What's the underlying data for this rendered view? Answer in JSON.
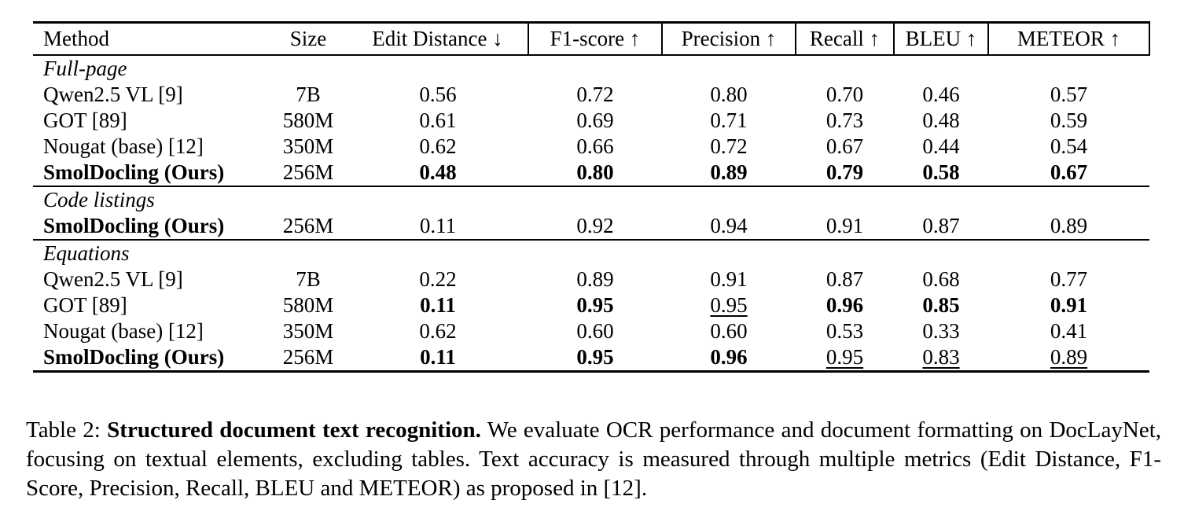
{
  "page": {
    "background_color": "#ffffff",
    "text_color": "#000000"
  },
  "table": {
    "header_cells": [
      "Method",
      "Size",
      "Edit Distance ↓",
      "F1-score ↑",
      "Precision ↑",
      "Recall ↑",
      "BLEU ↑",
      "METEOR ↑"
    ],
    "sections": [
      {
        "label": "Full-page",
        "rows": [
          {
            "cells": [
              {
                "text": "Qwen2.5 VL [9]"
              },
              {
                "text": "7B"
              },
              {
                "text": "0.56"
              },
              {
                "text": "0.72"
              },
              {
                "text": "0.80"
              },
              {
                "text": "0.70"
              },
              {
                "text": "0.46"
              },
              {
                "text": "0.57"
              }
            ]
          },
          {
            "cells": [
              {
                "text": "GOT [89]"
              },
              {
                "text": "580M"
              },
              {
                "text": "0.61"
              },
              {
                "text": "0.69"
              },
              {
                "text": "0.71"
              },
              {
                "text": "0.73"
              },
              {
                "text": "0.48"
              },
              {
                "text": "0.59"
              }
            ]
          },
          {
            "cells": [
              {
                "text": "Nougat (base) [12]"
              },
              {
                "text": "350M"
              },
              {
                "text": "0.62"
              },
              {
                "text": "0.66"
              },
              {
                "text": "0.72"
              },
              {
                "text": "0.67"
              },
              {
                "text": "0.44"
              },
              {
                "text": "0.54"
              }
            ]
          },
          {
            "cells": [
              {
                "text": "SmolDocling (Ours)",
                "bold": true
              },
              {
                "text": "256M"
              },
              {
                "text": "0.48",
                "bold": true
              },
              {
                "text": "0.80",
                "bold": true
              },
              {
                "text": "0.89",
                "bold": true
              },
              {
                "text": "0.79",
                "bold": true
              },
              {
                "text": "0.58",
                "bold": true
              },
              {
                "text": "0.67",
                "bold": true
              }
            ]
          }
        ]
      },
      {
        "label": "Code listings",
        "rows": [
          {
            "cells": [
              {
                "text": "SmolDocling (Ours)",
                "bold": true
              },
              {
                "text": "256M"
              },
              {
                "text": "0.11"
              },
              {
                "text": "0.92"
              },
              {
                "text": "0.94"
              },
              {
                "text": "0.91"
              },
              {
                "text": "0.87"
              },
              {
                "text": "0.89"
              }
            ]
          }
        ]
      },
      {
        "label": "Equations",
        "rows": [
          {
            "cells": [
              {
                "text": "Qwen2.5 VL [9]"
              },
              {
                "text": "7B"
              },
              {
                "text": "0.22"
              },
              {
                "text": "0.89"
              },
              {
                "text": "0.91"
              },
              {
                "text": "0.87"
              },
              {
                "text": "0.68"
              },
              {
                "text": "0.77"
              }
            ]
          },
          {
            "cells": [
              {
                "text": "GOT [89]"
              },
              {
                "text": "580M"
              },
              {
                "text": "0.11",
                "bold": true
              },
              {
                "text": "0.95",
                "bold": true
              },
              {
                "text": "0.95",
                "underline": true
              },
              {
                "text": "0.96",
                "bold": true
              },
              {
                "text": "0.85",
                "bold": true
              },
              {
                "text": "0.91",
                "bold": true
              }
            ]
          },
          {
            "cells": [
              {
                "text": "Nougat (base) [12]"
              },
              {
                "text": "350M"
              },
              {
                "text": "0.62"
              },
              {
                "text": "0.60"
              },
              {
                "text": "0.60"
              },
              {
                "text": "0.53"
              },
              {
                "text": "0.33"
              },
              {
                "text": "0.41"
              }
            ]
          },
          {
            "cells": [
              {
                "text": "SmolDocling (Ours)",
                "bold": true
              },
              {
                "text": "256M"
              },
              {
                "text": "0.11",
                "bold": true
              },
              {
                "text": "0.95",
                "bold": true
              },
              {
                "text": "0.96",
                "bold": true
              },
              {
                "text": "0.95",
                "underline": true
              },
              {
                "text": "0.83",
                "underline": true
              },
              {
                "text": "0.89",
                "underline": true
              }
            ]
          }
        ]
      }
    ]
  },
  "caption": {
    "prefix": "Table 2: ",
    "bold_title": "Structured document text recognition.",
    "rest": " We evaluate OCR performance and document formatting on DocLayNet, focusing on textual elements, excluding tables. Text accuracy is measured through multiple metrics (Edit Distance, F1-Score, Precision, Recall, BLEU and METEOR) as proposed in [12]."
  }
}
